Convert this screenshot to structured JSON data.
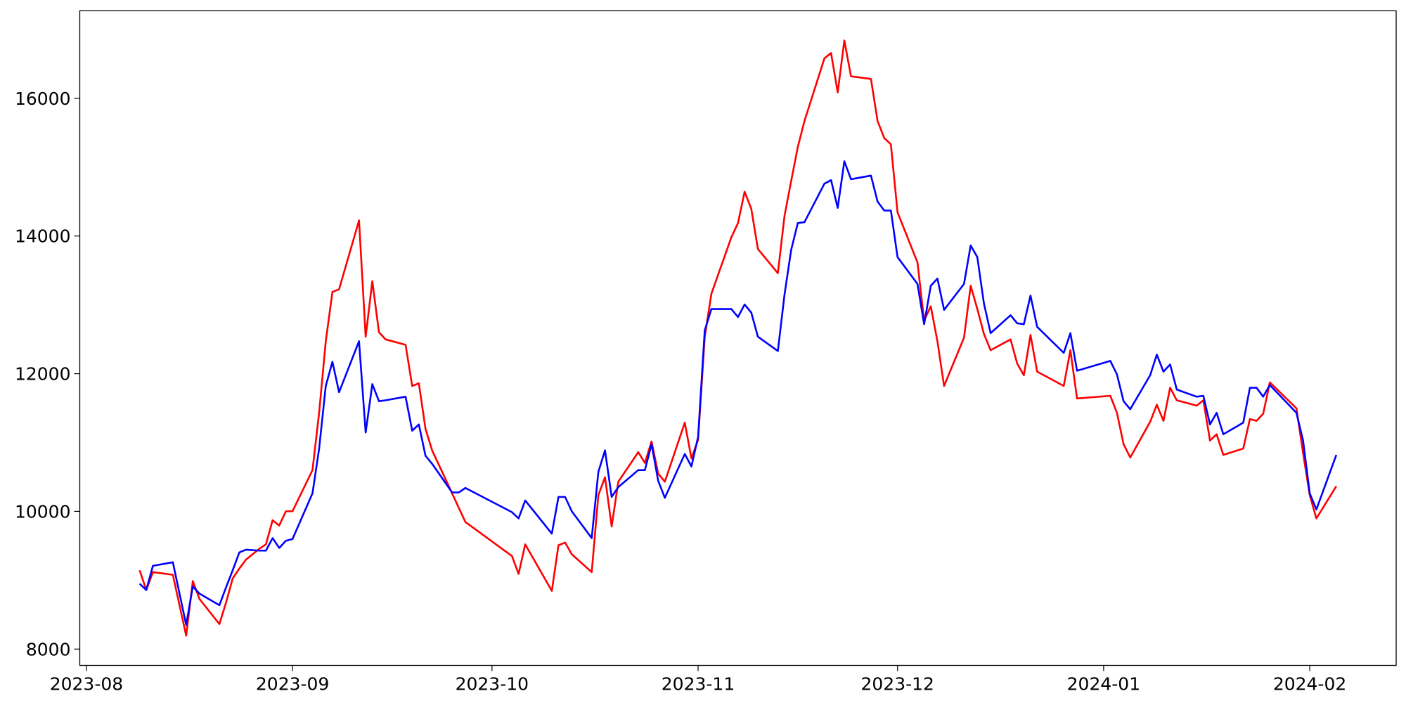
{
  "chart_data": {
    "type": "line",
    "x": [
      19578,
      19579,
      19580,
      19583,
      19585,
      19586,
      19587,
      19590,
      19591,
      19592,
      19593,
      19594,
      19596,
      19597,
      19598,
      19599,
      19600,
      19601,
      19604,
      19605,
      19606,
      19607,
      19608,
      19611,
      19612,
      19613,
      19614,
      19615,
      19618,
      19619,
      19620,
      19621,
      19622,
      19625,
      19626,
      19627,
      19634,
      19635,
      19636,
      19640,
      19641,
      19642,
      19643,
      19646,
      19647,
      19648,
      19649,
      19650,
      19653,
      19654,
      19655,
      19656,
      19657,
      19660,
      19661,
      19662,
      19663,
      19664,
      19667,
      19668,
      19669,
      19670,
      19671,
      19674,
      19675,
      19676,
      19677,
      19678,
      19681,
      19682,
      19683,
      19684,
      19685,
      19688,
      19689,
      19690,
      19691,
      19692,
      19695,
      19696,
      19697,
      19698,
      19699,
      19702,
      19703,
      19704,
      19705,
      19706,
      19709,
      19710,
      19711,
      19712,
      19713,
      19717,
      19718,
      19719,
      19724,
      19725,
      19726,
      19727,
      19730,
      19731,
      19732,
      19733,
      19734,
      19737,
      19738,
      19739,
      19740,
      19741,
      19744,
      19745,
      19746,
      19747,
      19748,
      19752,
      19753,
      19754,
      19755,
      19758
    ],
    "series": [
      {
        "color": "red",
        "values": [
          9144,
          8858,
          9118,
          9079,
          8195,
          8988,
          8728,
          8364,
          8676,
          9027,
          9170,
          9300,
          9456,
          9521,
          9872,
          9794,
          10002,
          10002,
          10600,
          11432,
          12472,
          13187,
          13226,
          14227,
          12537,
          13343,
          12602,
          12498,
          12420,
          11822,
          11861,
          11198,
          10886,
          10262,
          10054,
          9846,
          9352,
          9092,
          9521,
          8845,
          9508,
          9547,
          9378,
          9118,
          10236,
          10496,
          9781,
          10431,
          10860,
          10704,
          11016,
          10548,
          10431,
          11289,
          10769,
          11042,
          12537,
          13161,
          13980,
          14188,
          14643,
          14396,
          13811,
          13460,
          14292,
          14799,
          15293,
          15670,
          16580,
          16658,
          16086,
          16840,
          16320,
          16281,
          15670,
          15423,
          15332,
          14344,
          13616,
          12771,
          12979,
          12472,
          11822,
          12524,
          13278,
          12940,
          12576,
          12342,
          12498,
          12147,
          11978,
          12563,
          12030,
          11822,
          12342,
          11640,
          11679,
          11432,
          10977,
          10782,
          11302,
          11549,
          11315,
          11796,
          11614,
          11536,
          11614,
          11029,
          11120,
          10821,
          10912,
          11341,
          11315,
          11419,
          11874,
          11497,
          10847,
          10236,
          9898,
          10366
        ]
      },
      {
        "color": "blue",
        "values": [
          8949,
          8858,
          9209,
          9261,
          8351,
          8910,
          8806,
          8637,
          8897,
          9144,
          9404,
          9443,
          9430,
          9430,
          9612,
          9469,
          9573,
          9599,
          10262,
          10912,
          11822,
          12173,
          11731,
          12472,
          11146,
          11848,
          11601,
          11614,
          11666,
          11172,
          11263,
          10808,
          10691,
          10275,
          10275,
          10340,
          9989,
          9898,
          10158,
          9677,
          10210,
          10210,
          10002,
          9612,
          10574,
          10886,
          10210,
          10353,
          10600,
          10600,
          10977,
          10444,
          10197,
          10834,
          10652,
          11081,
          12628,
          12940,
          12940,
          12823,
          13005,
          12888,
          12537,
          12329,
          13148,
          13798,
          14188,
          14201,
          14760,
          14812,
          14409,
          15085,
          14825,
          14877,
          14500,
          14370,
          14370,
          13694,
          13304,
          12719,
          13278,
          13382,
          12927,
          13304,
          13863,
          13694,
          13018,
          12589,
          12849,
          12732,
          12719,
          13135,
          12680,
          12303,
          12589,
          12043,
          12186,
          11991,
          11601,
          11484,
          11978,
          12277,
          12030,
          12134,
          11770,
          11666,
          11679,
          11263,
          11432,
          11120,
          11289,
          11796,
          11796,
          11666,
          11835,
          11432,
          11029,
          10262,
          10028,
          10821
        ]
      }
    ],
    "xlim": [
      19569,
      19767
    ],
    "xticks": [
      {
        "value": 19570,
        "label": "2023-08"
      },
      {
        "value": 19601,
        "label": "2023-09"
      },
      {
        "value": 19631,
        "label": "2023-10"
      },
      {
        "value": 19662,
        "label": "2023-11"
      },
      {
        "value": 19692,
        "label": "2023-12"
      },
      {
        "value": 19723,
        "label": "2024-01"
      },
      {
        "value": 19754,
        "label": "2024-02"
      }
    ],
    "ylim": [
      7763,
      17272
    ],
    "yticks": [
      8000,
      10000,
      12000,
      14000,
      16000
    ]
  }
}
